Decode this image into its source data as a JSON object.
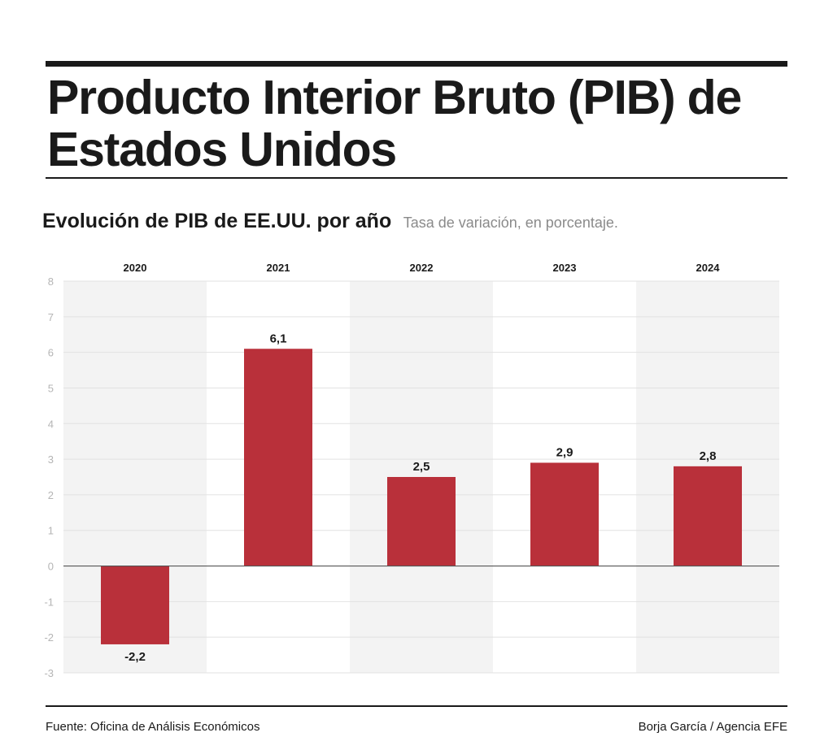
{
  "title": "Producto Interior Bruto (PIB) de Estados Unidos",
  "subtitle": "Evolución de PIB de EE.UU. por año",
  "subtitle_note": "Tasa de variación, en porcentaje.",
  "footer": {
    "source": "Fuente: Oficina de Análisis Económicos",
    "credit": "Borja García / Agencia EFE"
  },
  "colors": {
    "bar": "#b9303a",
    "band_shaded": "#f3f3f3",
    "band_plain": "#ffffff",
    "gridline": "#e2e2e2",
    "zero_line": "#555555",
    "tick_label": "#b5b5b5"
  },
  "chart_data": {
    "type": "bar",
    "title": "Evolución de PIB de EE.UU. por año",
    "subtitle": "Tasa de variación, en porcentaje.",
    "xlabel": "",
    "ylabel": "",
    "categories": [
      "2020",
      "2021",
      "2022",
      "2023",
      "2024"
    ],
    "values": [
      -2.2,
      6.1,
      2.5,
      2.9,
      2.8
    ],
    "value_labels": [
      "-2,2",
      "6,1",
      "2,5",
      "2,9",
      "2,8"
    ],
    "ylim": [
      -3,
      8
    ],
    "yticks": [
      8,
      7,
      6,
      5,
      4,
      3,
      2,
      1,
      0,
      -1,
      -2,
      -3
    ],
    "ytick_labels": [
      "8",
      "7",
      "6",
      "5",
      "4",
      "3",
      "2",
      "1",
      "0",
      "-1",
      "-2",
      "-3"
    ],
    "category_labels_position": "top",
    "grid": true,
    "legend": "none"
  }
}
